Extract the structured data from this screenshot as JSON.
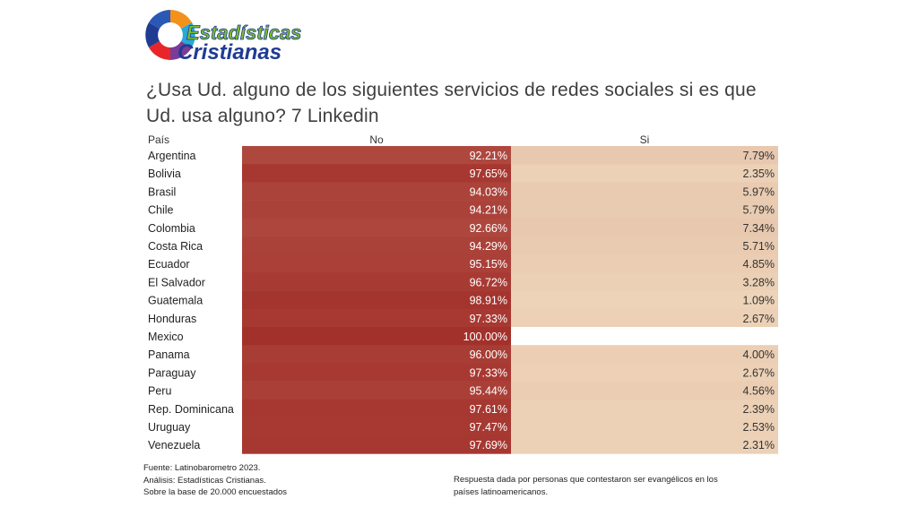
{
  "logo": {
    "line1": "Estadísticas",
    "line2": "Cristianas"
  },
  "title": "¿Usa Ud. alguno de los siguientes servicios de redes sociales si es que Ud. usa alguno? 7  Linkedin",
  "chart_data": {
    "type": "heatmap",
    "row_header": "País",
    "columns": [
      "No",
      "Si"
    ],
    "categories": [
      "Argentina",
      "Bolivia",
      "Brasil",
      "Chile",
      "Colombia",
      "Costa Rica",
      "Ecuador",
      "El Salvador",
      "Guatemala",
      "Honduras",
      "Mexico",
      "Panama",
      "Paraguay",
      "Peru",
      "Rep. Dominicana",
      "Uruguay",
      "Venezuela"
    ],
    "series": [
      {
        "name": "No",
        "values": [
          "92.21%",
          "97.65%",
          "94.03%",
          "94.21%",
          "92.66%",
          "94.29%",
          "95.15%",
          "96.72%",
          "98.91%",
          "97.33%",
          "100.00%",
          "96.00%",
          "97.33%",
          "95.44%",
          "97.61%",
          "97.47%",
          "97.69%"
        ]
      },
      {
        "name": "Si",
        "values": [
          "7.79%",
          "2.35%",
          "5.97%",
          "5.79%",
          "7.34%",
          "5.71%",
          "4.85%",
          "3.28%",
          "1.09%",
          "2.67%",
          null,
          "4.00%",
          "2.67%",
          "4.56%",
          "2.39%",
          "2.53%",
          "2.31%"
        ]
      }
    ],
    "colors": {
      "low": "#f1dcc0",
      "high": "#a3312b",
      "empty": "#ffffff"
    }
  },
  "footer": {
    "left": [
      "Fuente: Latinobarometro 2023.",
      "Análisis: Estadísticas Cristianas.",
      "Sobre la base de 20.000 encuestados"
    ],
    "right": [
      "Respuesta dada por personas que contestaron ser evangélicos en los",
      "países latinoamericanos."
    ]
  }
}
